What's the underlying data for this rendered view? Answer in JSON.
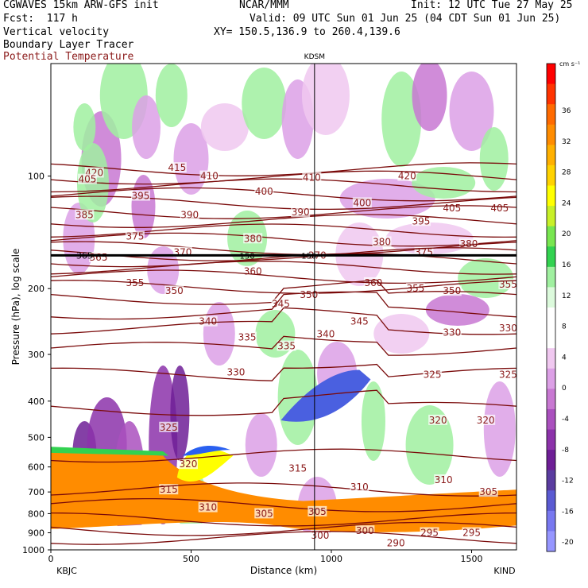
{
  "header": {
    "line1_left": "CGWAVES 15km ARW-GFS init",
    "line1_center": "NCAR/MMM",
    "line1_right": "Init: 12 UTC Tue 27 May 25",
    "line2_left": "Fcst:  117 h",
    "line2_right": "Valid: 09 UTC Sun 01 Jun 25 (04 CDT Sun 01 Jun 25)",
    "line3_left": "Vertical velocity",
    "line3_right": "XY= 150.5,136.9 to 260.4,139.6",
    "line4_left": "Boundary Layer Tracer",
    "line5_left": "Potential Temperature"
  },
  "colors": {
    "theta_contour": "#7a0a0a",
    "theta_label_text": "#8b1a1a",
    "marker_line": "#000000",
    "pbl_fill": "#ff8c00"
  },
  "chart_data": {
    "type": "heatmap",
    "title": "",
    "marker_label": "KDSM",
    "marker_x": 940,
    "xlabel": "Distance (km)",
    "ylabel": "Pressure (hPa), log scale",
    "x_range": [
      0,
      1660
    ],
    "y_range_pressure": [
      1000,
      50
    ],
    "log_y": true,
    "x_ticks": [
      0,
      500,
      1000,
      1500
    ],
    "x_tick_labels": [
      "0",
      "500",
      "1000",
      "1500"
    ],
    "x_end_labels": [
      "KBJC",
      "KIND"
    ],
    "y_ticks": [
      100,
      200,
      300,
      400,
      500,
      600,
      700,
      800,
      900,
      1000
    ],
    "y_tick_labels": [
      "100",
      "200",
      "300",
      "400",
      "500",
      "600",
      "700",
      "800",
      "900",
      "1000"
    ],
    "colorbar": {
      "unit": "cm s⁻¹",
      "labels": [
        36,
        32,
        28,
        24,
        20,
        16,
        12,
        8,
        4,
        0,
        -4,
        -8,
        -12,
        -16,
        -20
      ],
      "colors": [
        "#ff0000",
        "#ff3300",
        "#ff6a00",
        "#ff8c00",
        "#ffb000",
        "#ffd200",
        "#ffff00",
        "#c8f028",
        "#78e650",
        "#32d250",
        "#a0f0a0",
        "#dcfadc",
        "#ffffff",
        "#ffffff",
        "#f0c8f0",
        "#dca0e6",
        "#c878d2",
        "#aa50be",
        "#8c32aa",
        "#6e1e96",
        "#5a3ca0",
        "#5a5ad2",
        "#7878f0",
        "#9696ff"
      ]
    },
    "theta_levels": [
      {
        "value": 420,
        "label_positions": [
          [
            155,
            98
          ],
          [
            1270,
            100
          ]
        ]
      },
      {
        "value": 415,
        "label_positions": [
          [
            450,
            95
          ]
        ]
      },
      {
        "value": 410,
        "label_positions": [
          [
            565,
            100
          ],
          [
            930,
            101
          ]
        ]
      },
      {
        "value": 405,
        "label_positions": [
          [
            130,
            102
          ],
          [
            1430,
            122
          ],
          [
            1600,
            122
          ]
        ]
      },
      {
        "value": 400,
        "label_positions": [
          [
            760,
            110
          ],
          [
            1110,
            118
          ]
        ]
      },
      {
        "value": 395,
        "label_positions": [
          [
            320,
            113
          ],
          [
            1320,
            132
          ]
        ]
      },
      {
        "value": 390,
        "label_positions": [
          [
            495,
            127
          ],
          [
            890,
            125
          ]
        ]
      },
      {
        "value": 385,
        "label_positions": [
          [
            120,
            127
          ]
        ]
      },
      {
        "value": 380,
        "label_positions": [
          [
            720,
            147
          ],
          [
            1180,
            150
          ],
          [
            1490,
            152
          ]
        ]
      },
      {
        "value": 375,
        "label_positions": [
          [
            300,
            145
          ],
          [
            1330,
            160
          ]
        ]
      },
      {
        "value": 370,
        "label_positions": [
          [
            470,
            160
          ],
          [
            950,
            163
          ]
        ]
      },
      {
        "value": 365,
        "label_positions": [
          [
            170,
            165
          ]
        ]
      },
      {
        "value": 360,
        "label_positions": [
          [
            720,
            180
          ],
          [
            1150,
            193
          ]
        ]
      },
      {
        "value": 355,
        "label_positions": [
          [
            300,
            193
          ],
          [
            1300,
            200
          ],
          [
            1630,
            195
          ]
        ]
      },
      {
        "value": 350,
        "label_positions": [
          [
            440,
            203
          ],
          [
            920,
            208
          ],
          [
            1430,
            203
          ]
        ]
      },
      {
        "value": 345,
        "label_positions": [
          [
            820,
            220
          ],
          [
            1100,
            245
          ]
        ]
      },
      {
        "value": 340,
        "label_positions": [
          [
            560,
            245
          ],
          [
            980,
            265
          ]
        ]
      },
      {
        "value": 335,
        "label_positions": [
          [
            700,
            270
          ],
          [
            840,
            285
          ]
        ]
      },
      {
        "value": 330,
        "label_positions": [
          [
            660,
            335
          ],
          [
            1430,
            262
          ],
          [
            1630,
            255
          ]
        ]
      },
      {
        "value": 325,
        "label_positions": [
          [
            420,
            470
          ],
          [
            1360,
            340
          ],
          [
            1630,
            340
          ]
        ]
      },
      {
        "value": 320,
        "label_positions": [
          [
            490,
            590
          ],
          [
            1380,
            450
          ],
          [
            1550,
            450
          ]
        ]
      },
      {
        "value": 315,
        "label_positions": [
          [
            420,
            690
          ],
          [
            880,
            605
          ]
        ]
      },
      {
        "value": 310,
        "label_positions": [
          [
            560,
            770
          ],
          [
            1100,
            680
          ],
          [
            1400,
            650
          ]
        ]
      },
      {
        "value": 305,
        "label_positions": [
          [
            760,
            800
          ],
          [
            950,
            790
          ],
          [
            1560,
            700
          ]
        ]
      },
      {
        "value": 300,
        "label_positions": [
          [
            960,
            915
          ],
          [
            1120,
            890
          ]
        ]
      },
      {
        "value": 295,
        "label_positions": [
          [
            1350,
            900
          ],
          [
            1500,
            900
          ]
        ]
      },
      {
        "value": 290,
        "label_positions": [
          [
            1230,
            960
          ]
        ]
      }
    ],
    "tropopause_labels": [
      {
        "text": "150",
        "x": 700
      },
      {
        "text": "150",
        "x": 920
      }
    ],
    "left_tropo_label": {
      "text": "365",
      "x": 120
    }
  }
}
